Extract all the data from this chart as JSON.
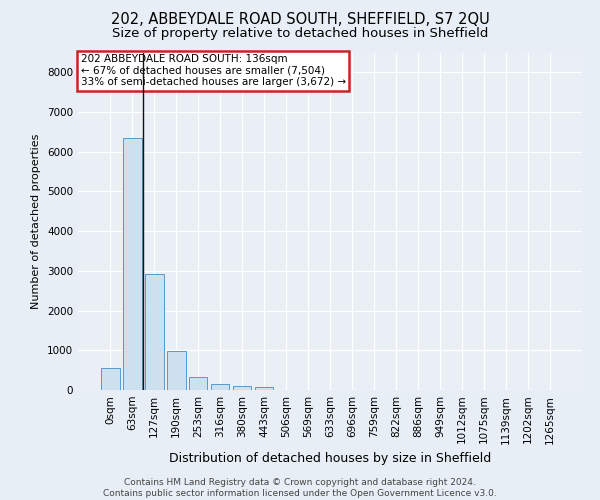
{
  "title": "202, ABBEYDALE ROAD SOUTH, SHEFFIELD, S7 2QU",
  "subtitle": "Size of property relative to detached houses in Sheffield",
  "xlabel": "Distribution of detached houses by size in Sheffield",
  "ylabel": "Number of detached properties",
  "footer_line1": "Contains HM Land Registry data © Crown copyright and database right 2024.",
  "footer_line2": "Contains public sector information licensed under the Open Government Licence v3.0.",
  "bar_labels": [
    "0sqm",
    "63sqm",
    "127sqm",
    "190sqm",
    "253sqm",
    "316sqm",
    "380sqm",
    "443sqm",
    "506sqm",
    "569sqm",
    "633sqm",
    "696sqm",
    "759sqm",
    "822sqm",
    "886sqm",
    "949sqm",
    "1012sqm",
    "1075sqm",
    "1139sqm",
    "1202sqm",
    "1265sqm"
  ],
  "bar_values": [
    560,
    6350,
    2930,
    970,
    340,
    155,
    100,
    70,
    0,
    0,
    0,
    0,
    0,
    0,
    0,
    0,
    0,
    0,
    0,
    0,
    0
  ],
  "bar_color": "#cce0f0",
  "bar_edge_color": "#5599cc",
  "vline_color": "#111111",
  "annotation_text": "202 ABBEYDALE ROAD SOUTH: 136sqm\n← 67% of detached houses are smaller (7,504)\n33% of semi-detached houses are larger (3,672) →",
  "annotation_box_color": "#cc2222",
  "ylim": [
    0,
    8500
  ],
  "yticks": [
    0,
    1000,
    2000,
    3000,
    4000,
    5000,
    6000,
    7000,
    8000
  ],
  "bg_color": "#e8eef5",
  "plot_bg_color": "#eaeff6",
  "grid_color": "#ffffff",
  "title_fontsize": 10.5,
  "subtitle_fontsize": 9.5,
  "ylabel_fontsize": 8,
  "xlabel_fontsize": 9,
  "tick_fontsize": 7.5,
  "footer_fontsize": 6.5
}
